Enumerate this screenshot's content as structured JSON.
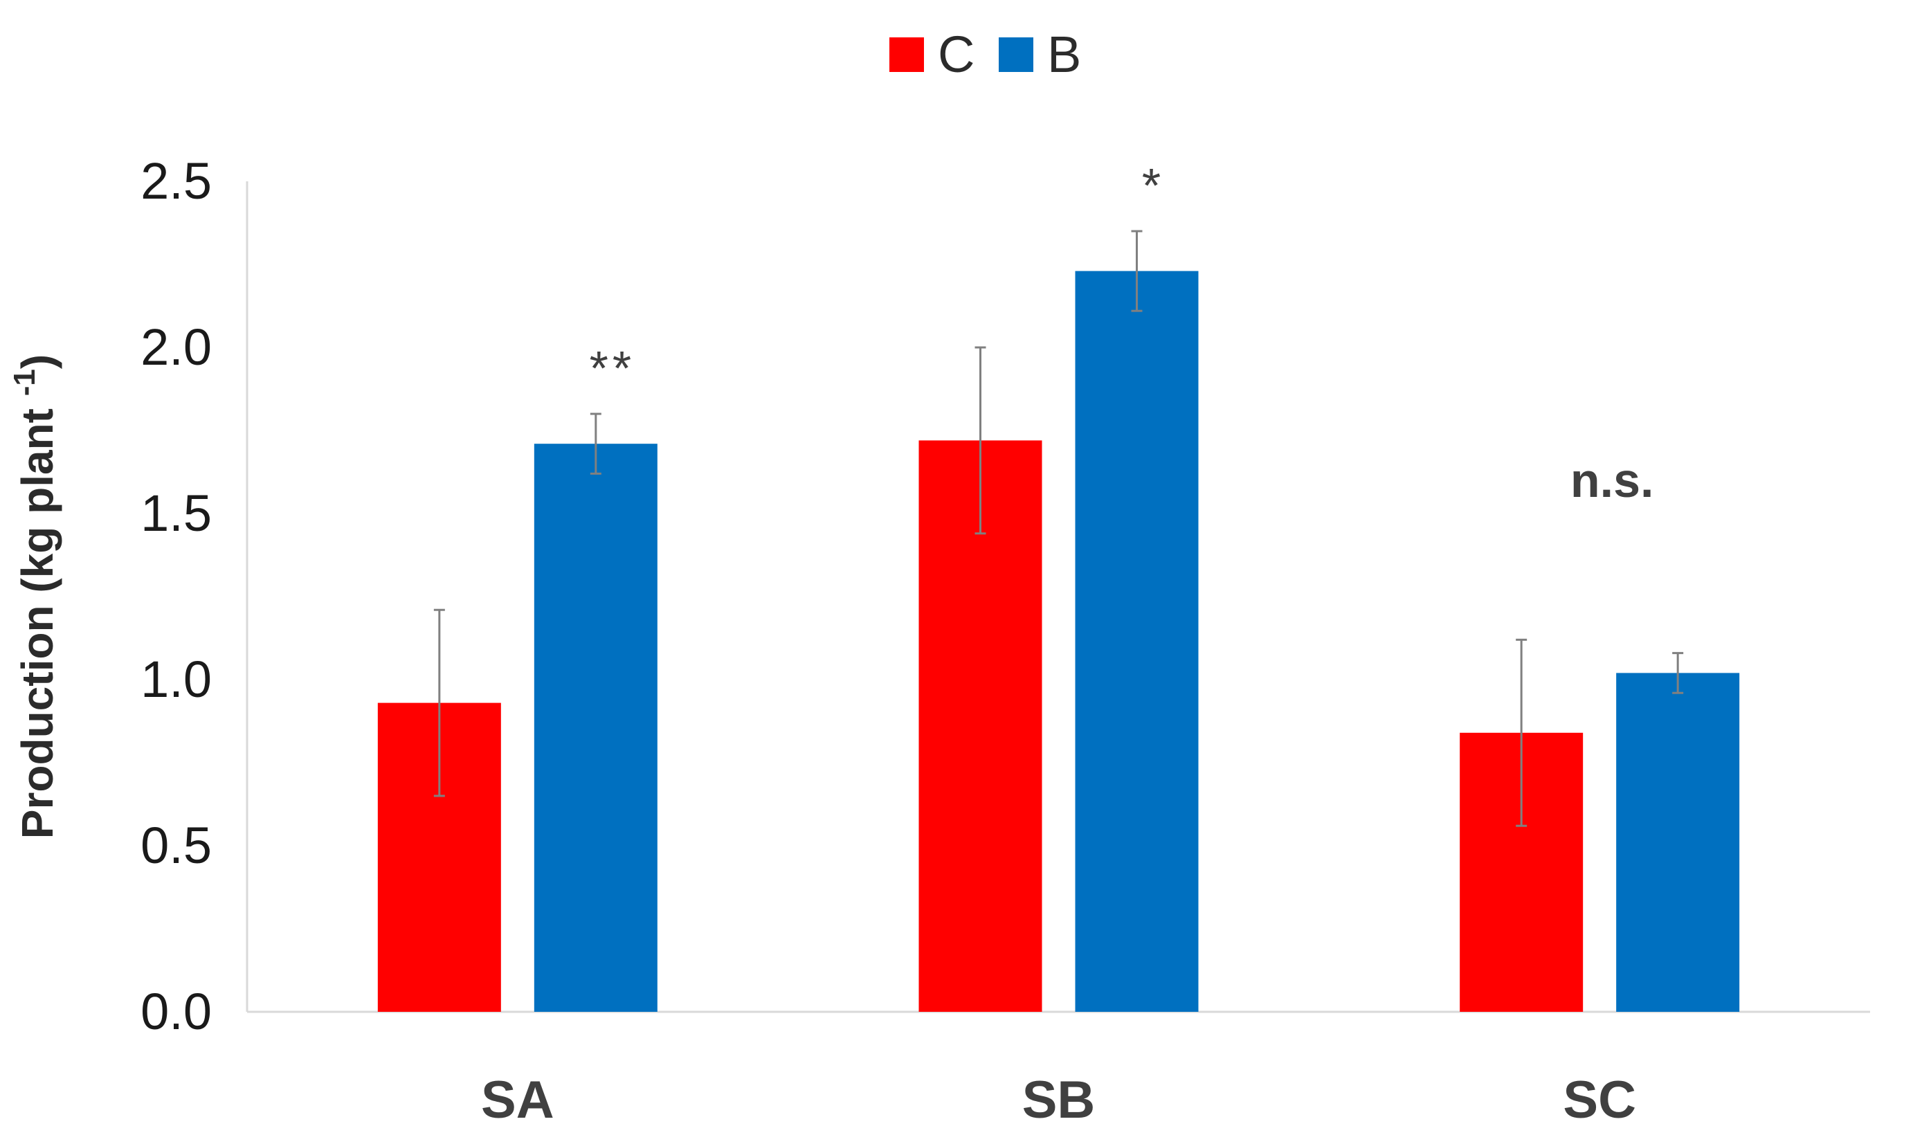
{
  "chart_data": {
    "type": "bar",
    "title": "",
    "xlabel": "",
    "ylabel": "Production (kg plant ",
    "ylabel_superscript": "-1",
    "ylabel_close": ")",
    "categories": [
      "SA",
      "SB",
      "SC"
    ],
    "series": [
      {
        "name": "C",
        "color": "#ff0000",
        "values": [
          0.93,
          1.72,
          0.84
        ],
        "errors": [
          0.28,
          0.28,
          0.28
        ]
      },
      {
        "name": "B",
        "color": "#0070c0",
        "values": [
          1.71,
          2.23,
          1.02
        ],
        "errors": [
          0.09,
          0.12,
          0.06
        ]
      }
    ],
    "significance": [
      "**",
      "*",
      "n.s."
    ],
    "ylim": [
      0,
      2.5
    ],
    "yticks": [
      0.0,
      0.5,
      1.0,
      1.5,
      2.0,
      2.5
    ],
    "ytick_labels": [
      "0.0",
      "0.5",
      "1.0",
      "1.5",
      "2.0",
      "2.5"
    ],
    "legend_position": "top-center",
    "grid": false,
    "error_bar_color": "#808080",
    "axis_color": "#d9d9d9"
  }
}
